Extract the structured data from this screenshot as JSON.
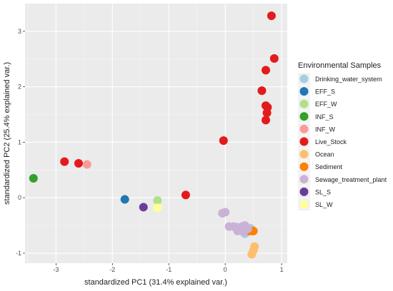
{
  "chart_data": {
    "type": "scatter",
    "xlabel": "standardized PC1 (31.4% explained var.)",
    "ylabel": "standardized PC2 (25.4% explained var.)",
    "xlim": [
      -3.55,
      1.1
    ],
    "ylim": [
      -1.18,
      3.5
    ],
    "x_ticks": [
      -3,
      -2,
      -1,
      0,
      1
    ],
    "y_ticks": [
      -1,
      0,
      1,
      2,
      3
    ],
    "grid": true,
    "legend": {
      "title": "Environmental Samples",
      "position": "right"
    },
    "series": [
      {
        "name": "Drinking_water_system",
        "color": "#a6cee3",
        "points": [
          [
            0.35,
            -0.65
          ],
          [
            0.45,
            -0.55
          ],
          [
            0.5,
            -0.6
          ]
        ]
      },
      {
        "name": "EFF_S",
        "color": "#1f78b4",
        "points": [
          [
            -1.78,
            -0.03
          ]
        ]
      },
      {
        "name": "EFF_W",
        "color": "#b2df8a",
        "points": [
          [
            -1.2,
            -0.05
          ]
        ]
      },
      {
        "name": "INF_S",
        "color": "#33a02c",
        "points": [
          [
            -3.4,
            0.35
          ]
        ]
      },
      {
        "name": "INF_W",
        "color": "#fb9a99",
        "points": [
          [
            -2.45,
            0.6
          ]
        ]
      },
      {
        "name": "Live_Stock",
        "color": "#e31a1c",
        "points": [
          [
            0.82,
            3.28
          ],
          [
            0.87,
            2.51
          ],
          [
            0.72,
            2.3
          ],
          [
            0.65,
            1.93
          ],
          [
            0.72,
            1.66
          ],
          [
            0.75,
            1.63
          ],
          [
            0.74,
            1.53
          ],
          [
            0.72,
            1.4
          ],
          [
            -0.03,
            1.03
          ],
          [
            -2.85,
            0.65
          ],
          [
            -2.6,
            0.62
          ],
          [
            -0.7,
            0.05
          ]
        ]
      },
      {
        "name": "Ocean",
        "color": "#fdbf6f",
        "points": [
          [
            0.52,
            -0.88
          ],
          [
            0.5,
            -0.95
          ],
          [
            0.47,
            -1.02
          ]
        ]
      },
      {
        "name": "Sediment",
        "color": "#ff7f00",
        "points": [
          [
            0.37,
            -0.6
          ],
          [
            0.42,
            -0.6
          ],
          [
            0.47,
            -0.6
          ],
          [
            0.5,
            -0.6
          ]
        ]
      },
      {
        "name": "Sewage_treatment_plant",
        "color": "#cab2d6",
        "points": [
          [
            0.0,
            -0.26
          ],
          [
            -0.05,
            -0.28
          ],
          [
            0.07,
            -0.52
          ],
          [
            0.15,
            -0.52
          ],
          [
            0.2,
            -0.53
          ],
          [
            0.25,
            -0.55
          ],
          [
            0.3,
            -0.52
          ],
          [
            0.35,
            -0.5
          ],
          [
            0.4,
            -0.56
          ],
          [
            0.22,
            -0.6
          ],
          [
            0.28,
            -0.58
          ],
          [
            0.33,
            -0.62
          ]
        ]
      },
      {
        "name": "SL_S",
        "color": "#6a3d9a",
        "points": [
          [
            -1.45,
            -0.17
          ]
        ]
      },
      {
        "name": "SL_W",
        "color": "#ffff99",
        "points": [
          [
            -1.2,
            -0.18
          ]
        ]
      }
    ]
  }
}
